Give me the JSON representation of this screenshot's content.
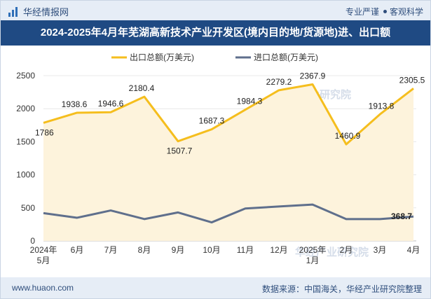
{
  "header": {
    "brand": "华经情报网",
    "tagline_left": "专业严谨",
    "tagline_right": "客观科学"
  },
  "title": "2024-2025年4月年芜湖高新技术产业开发区(境内目的地/货源地)进、出口额",
  "footer": {
    "site": "www.huaon.com",
    "source": "数据来源：中国海关，华经产业研究院整理"
  },
  "watermark": {
    "text": "华经产业研究院",
    "url": "www.huaon.com"
  },
  "colors": {
    "export": "#f5be1e",
    "import": "#5f6f8c",
    "area": "#fdf3dc"
  },
  "chart_data": {
    "type": "line",
    "title": "2024-2025年4月年芜湖高新技术产业开发区(境内目的地/货源地)进、出口额",
    "categories": [
      "2024年\n5月",
      "6月",
      "7月",
      "8月",
      "9月",
      "10月",
      "11月",
      "12月",
      "2025年\n1月",
      "2月",
      "3月",
      "4月"
    ],
    "series": [
      {
        "name": "出口总额(万美元)",
        "values": [
          1786,
          1938.6,
          1946.6,
          2180.4,
          1507.7,
          1687.3,
          1984.3,
          2279.2,
          2367.9,
          1460.9,
          1913.8,
          2305.5
        ]
      },
      {
        "name": "进口总额(万美元)",
        "values": [
          420,
          350,
          460,
          330,
          430,
          280,
          490,
          520,
          550,
          330,
          330,
          368.7
        ]
      }
    ],
    "labeled_points": {
      "import_last": 368.7
    },
    "ylim": [
      0,
      2500
    ],
    "yticks": [
      0,
      500,
      1000,
      1500,
      2000,
      2500
    ],
    "xlabel": "",
    "ylabel": "",
    "legend": "top-center",
    "grid": true
  }
}
